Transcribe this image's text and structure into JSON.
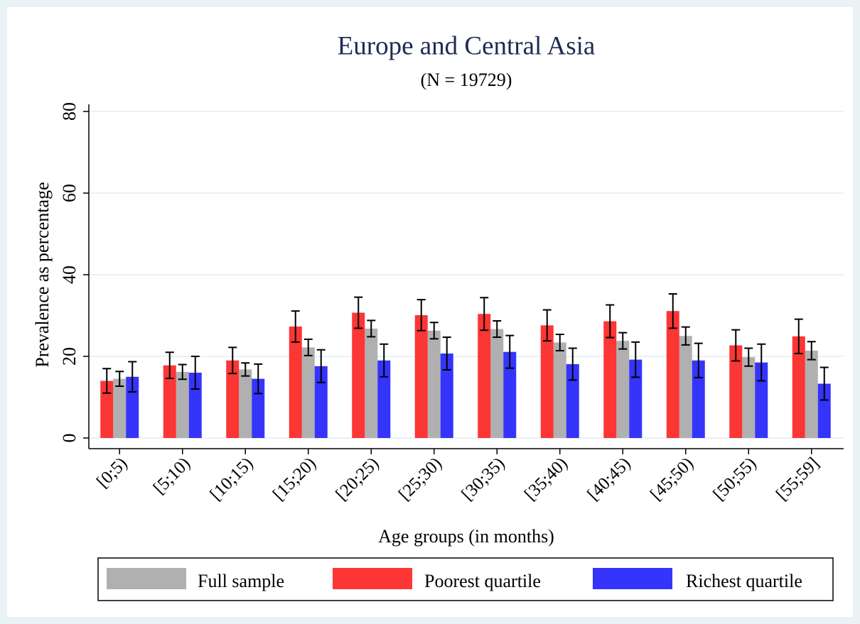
{
  "chart_data": {
    "type": "bar",
    "title": "Europe and Central Asia",
    "subtitle": "(N = 19729)",
    "y_label": "Prevalence as percentage",
    "x_label": "Age groups (in months)",
    "categories": [
      "[0;5)",
      "[5;10)",
      "[10;15)",
      "[15;20)",
      "[20;25)",
      "[25;30)",
      "[30;35)",
      "[35;40)",
      "[40;45)",
      "[45;50)",
      "[50;55)",
      "[55;59]"
    ],
    "series": [
      {
        "name": "Full sample",
        "color": "#b0b0b0",
        "values": [
          14.5,
          16.2,
          16.8,
          22.2,
          26.8,
          26.3,
          26.7,
          23.4,
          23.8,
          25,
          19.8,
          21.4
        ],
        "errors": [
          1.8,
          1.8,
          1.6,
          2,
          2,
          2,
          2,
          2,
          2,
          2.2,
          2.2,
          2.2
        ]
      },
      {
        "name": "Poorest quartile",
        "color": "#fc3535",
        "values": [
          14,
          17.8,
          19,
          27.3,
          30.7,
          30.1,
          30.4,
          27.6,
          28.6,
          31.1,
          22.7,
          24.9
        ],
        "errors": [
          3,
          3.2,
          3.2,
          3.8,
          3.8,
          3.8,
          4,
          3.8,
          4,
          4.2,
          3.8,
          4.2
        ]
      },
      {
        "name": "Richest quartile",
        "color": "#3434fb",
        "values": [
          15,
          16,
          14.5,
          17.6,
          19,
          20.7,
          21.1,
          18.1,
          19.2,
          19,
          18.5,
          13.3
        ],
        "errors": [
          3.7,
          4,
          3.6,
          4,
          4,
          4,
          4,
          3.9,
          4.3,
          4.2,
          4.5,
          4
        ]
      }
    ],
    "ylim": [
      0,
      80
    ],
    "yticks": [
      0,
      20,
      40,
      60,
      80
    ],
    "grid": true,
    "legend": "bottom"
  }
}
